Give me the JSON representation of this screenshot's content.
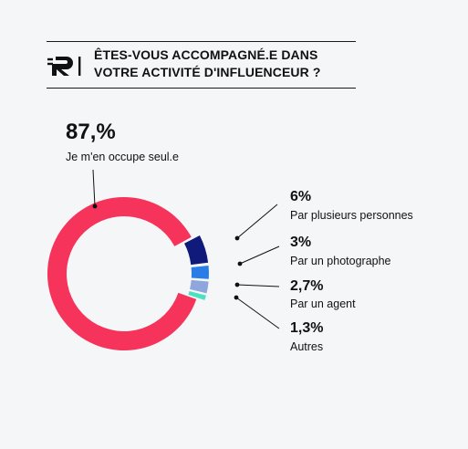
{
  "header": {
    "title_line1": "ÊTES-VOUS ACCOMPAGNÉ.E DANS",
    "title_line2": "VOTRE ACTIVITÉ D'INFLUENCEUR ?",
    "logo_text": "R"
  },
  "chart_data": {
    "type": "pie",
    "style": "donut",
    "title": "ÊTES-VOUS ACCOMPAGNÉ.E DANS VOTRE ACTIVITÉ D'INFLUENCEUR ?",
    "slices": [
      {
        "label": "Je m'en occupe seul.e",
        "value": 87,
        "display": "87,%",
        "color": "#f5335b"
      },
      {
        "label": "Par plusieurs personnes",
        "value": 6,
        "display": "6%",
        "color": "#0f1a7a"
      },
      {
        "label": "Par un photographe",
        "value": 3,
        "display": "3%",
        "color": "#2a7ce6"
      },
      {
        "label": "Par un agent",
        "value": 2.7,
        "display": "2,7%",
        "color": "#8fa6dc"
      },
      {
        "label": "Autres",
        "value": 1.3,
        "display": "1,3%",
        "color": "#4be0c2"
      }
    ]
  }
}
